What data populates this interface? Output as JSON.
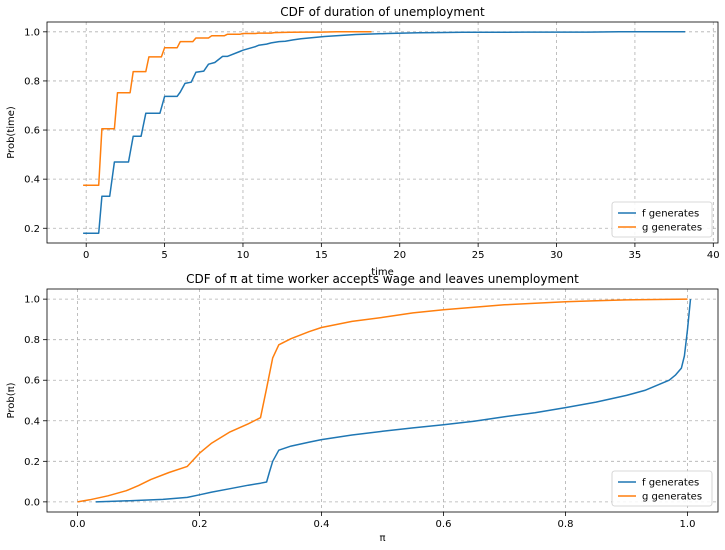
{
  "chart_data": [
    {
      "type": "line",
      "title": "CDF of duration of unemployment",
      "xlabel": "time",
      "ylabel": "Prob(time)",
      "xlim": [
        -2.5,
        40.3
      ],
      "ylim": [
        0.14,
        1.04
      ],
      "xticks": [
        "0",
        "5",
        "10",
        "15",
        "20",
        "25",
        "30",
        "35",
        "40"
      ],
      "yticks": [
        "0.2",
        "0.4",
        "0.6",
        "0.8",
        "1.0"
      ],
      "grid": true,
      "legend_position": "lower right",
      "series": [
        {
          "name": "f generates",
          "color": "#1f77b4",
          "x": [
            -0.2,
            0.8,
            1.0,
            1.5,
            1.8,
            2.7,
            3.0,
            3.5,
            3.8,
            4.7,
            5.0,
            5.8,
            6.0,
            6.3,
            6.7,
            7.0,
            7.5,
            7.8,
            8.2,
            8.7,
            9.0,
            9.8,
            10.0,
            10.8,
            11.0,
            11.5,
            11.8,
            12.3,
            12.7,
            13.2,
            13.7,
            14.2,
            14.7,
            15.2,
            15.7,
            16.2,
            16.7,
            17.2,
            17.7,
            18.2,
            19.2,
            20.2,
            21.2,
            22.2,
            24.0,
            26.0,
            28.0,
            30.0,
            32.0,
            34.0,
            36.0,
            38.2
          ],
          "y": [
            0.18,
            0.18,
            0.33,
            0.33,
            0.47,
            0.47,
            0.575,
            0.575,
            0.668,
            0.668,
            0.737,
            0.737,
            0.755,
            0.79,
            0.795,
            0.835,
            0.84,
            0.868,
            0.875,
            0.9,
            0.9,
            0.92,
            0.925,
            0.94,
            0.945,
            0.95,
            0.955,
            0.96,
            0.962,
            0.967,
            0.972,
            0.975,
            0.978,
            0.981,
            0.983,
            0.985,
            0.987,
            0.989,
            0.99,
            0.991,
            0.993,
            0.995,
            0.996,
            0.997,
            0.998,
            0.998,
            0.999,
            0.999,
            0.999,
            1.0,
            1.0,
            1.0
          ]
        },
        {
          "name": "g generates",
          "color": "#ff7f0e",
          "x": [
            -0.2,
            0.8,
            1.0,
            1.8,
            2.0,
            2.8,
            3.0,
            3.8,
            4.0,
            4.8,
            5.0,
            5.8,
            6.0,
            6.8,
            7.0,
            7.8,
            8.0,
            8.8,
            9.0,
            9.8,
            10.0,
            10.8,
            11.0,
            11.8,
            12.0,
            13.0,
            14.0,
            15.0,
            16.0,
            17.0,
            18.2
          ],
          "y": [
            0.375,
            0.375,
            0.605,
            0.605,
            0.752,
            0.752,
            0.838,
            0.838,
            0.898,
            0.898,
            0.935,
            0.935,
            0.96,
            0.96,
            0.975,
            0.975,
            0.984,
            0.984,
            0.99,
            0.99,
            0.993,
            0.993,
            0.995,
            0.995,
            0.997,
            0.998,
            0.999,
            0.999,
            1.0,
            1.0,
            1.0
          ]
        }
      ]
    },
    {
      "type": "line",
      "title": "CDF of π at time worker accepts wage and leaves unemployment",
      "xlabel": "π",
      "ylabel": "Prob(π)",
      "xlim": [
        -0.05,
        1.05
      ],
      "ylim": [
        -0.05,
        1.05
      ],
      "xticks": [
        "0.0",
        "0.2",
        "0.4",
        "0.6",
        "0.8",
        "1.0"
      ],
      "yticks": [
        "0.0",
        "0.2",
        "0.4",
        "0.6",
        "0.8",
        "1.0"
      ],
      "grid": true,
      "legend_position": "lower right",
      "series": [
        {
          "name": "f generates",
          "color": "#1f77b4",
          "x": [
            0.03,
            0.06,
            0.1,
            0.14,
            0.18,
            0.2,
            0.22,
            0.25,
            0.28,
            0.3,
            0.31,
            0.315,
            0.32,
            0.33,
            0.35,
            0.38,
            0.4,
            0.45,
            0.5,
            0.55,
            0.6,
            0.65,
            0.7,
            0.75,
            0.8,
            0.85,
            0.9,
            0.93,
            0.95,
            0.97,
            0.98,
            0.99,
            0.995,
            1.0,
            1.005
          ],
          "y": [
            0.0,
            0.003,
            0.007,
            0.012,
            0.022,
            0.035,
            0.048,
            0.065,
            0.082,
            0.092,
            0.098,
            0.15,
            0.2,
            0.255,
            0.275,
            0.295,
            0.307,
            0.33,
            0.348,
            0.365,
            0.38,
            0.398,
            0.42,
            0.44,
            0.465,
            0.492,
            0.525,
            0.55,
            0.575,
            0.6,
            0.625,
            0.66,
            0.72,
            0.85,
            1.0
          ]
        },
        {
          "name": "g generates",
          "color": "#ff7f0e",
          "x": [
            0.0,
            0.02,
            0.05,
            0.08,
            0.1,
            0.12,
            0.15,
            0.18,
            0.2,
            0.22,
            0.25,
            0.28,
            0.3,
            0.31,
            0.32,
            0.33,
            0.35,
            0.38,
            0.4,
            0.45,
            0.5,
            0.55,
            0.6,
            0.65,
            0.7,
            0.75,
            0.8,
            0.85,
            0.9,
            0.95,
            1.0
          ],
          "y": [
            0.0,
            0.01,
            0.03,
            0.055,
            0.08,
            0.11,
            0.145,
            0.175,
            0.24,
            0.29,
            0.345,
            0.385,
            0.415,
            0.56,
            0.71,
            0.775,
            0.805,
            0.84,
            0.86,
            0.89,
            0.91,
            0.932,
            0.948,
            0.96,
            0.972,
            0.98,
            0.987,
            0.992,
            0.996,
            0.998,
            1.0
          ]
        }
      ]
    }
  ]
}
